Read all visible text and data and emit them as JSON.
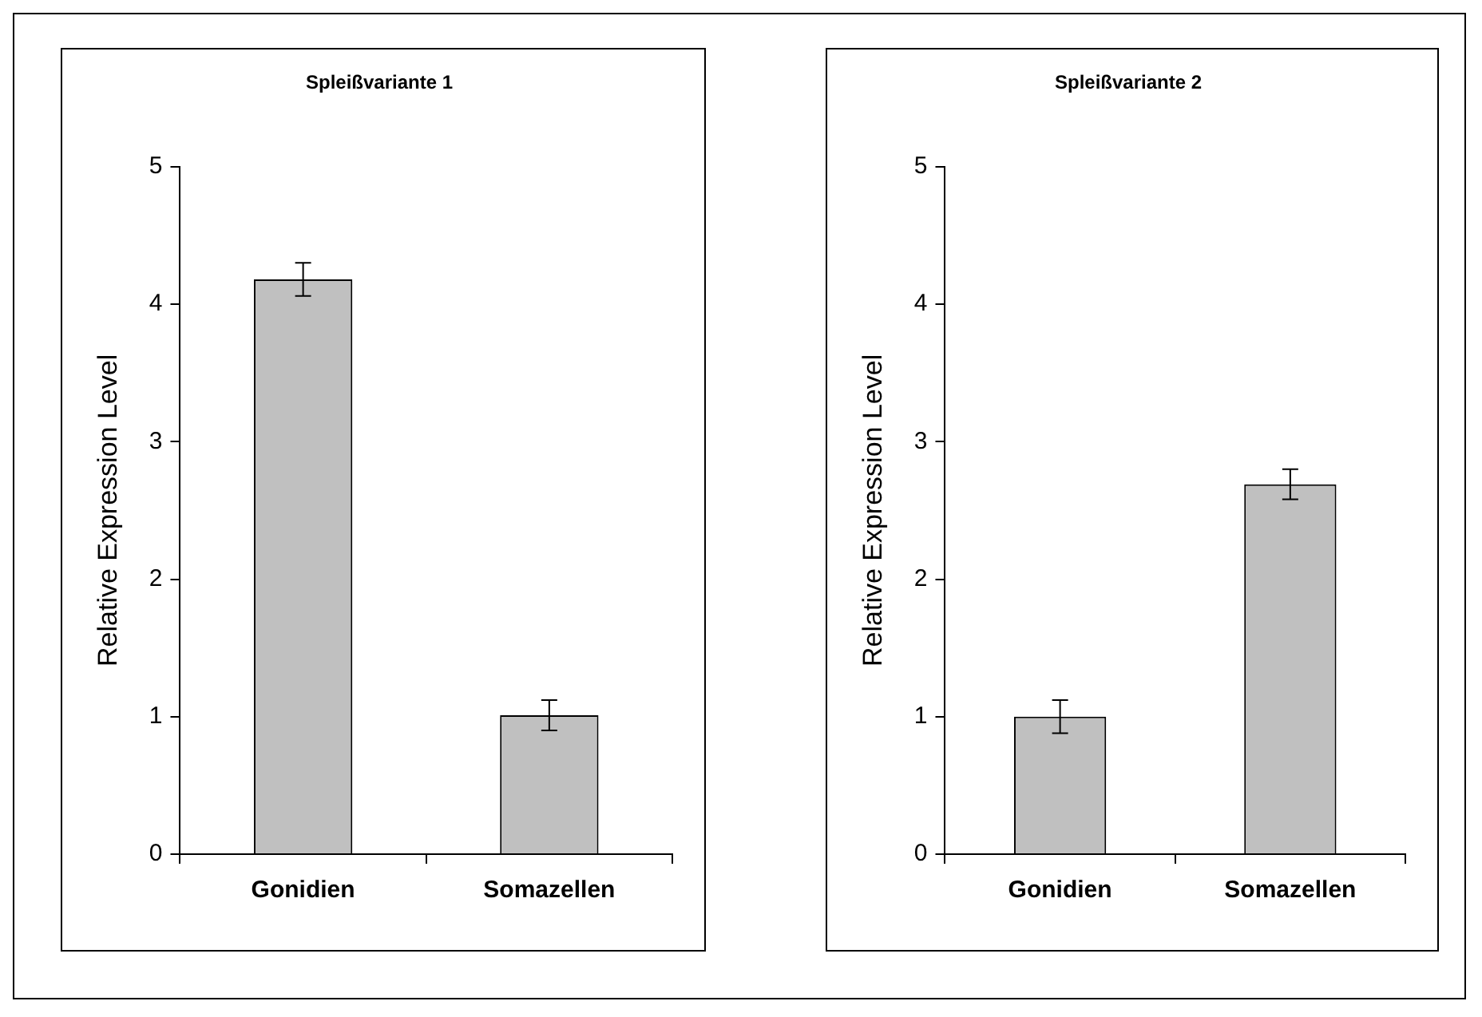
{
  "chart_data": [
    {
      "type": "bar",
      "title": "Spleißvariante 1",
      "ylabel": "Relative Expression Level",
      "categories": [
        "Gonidien",
        "Somazellen"
      ],
      "values": [
        4.18,
        1.01
      ],
      "errors": [
        0.12,
        0.11
      ],
      "color": "#c0c0c0",
      "ylim": [
        0,
        5
      ],
      "yticks": [
        0,
        1,
        2,
        3,
        4,
        5
      ],
      "grid": false,
      "legend": false
    },
    {
      "type": "bar",
      "title": "Spleißvariante 2",
      "ylabel": "Relative Expression Level",
      "categories": [
        "Gonidien",
        "Somazellen"
      ],
      "values": [
        1.0,
        2.69
      ],
      "errors": [
        0.12,
        0.11
      ],
      "color": "#c0c0c0",
      "ylim": [
        0,
        5
      ],
      "yticks": [
        0,
        1,
        2,
        3,
        4,
        5
      ],
      "grid": false,
      "legend": false
    }
  ]
}
